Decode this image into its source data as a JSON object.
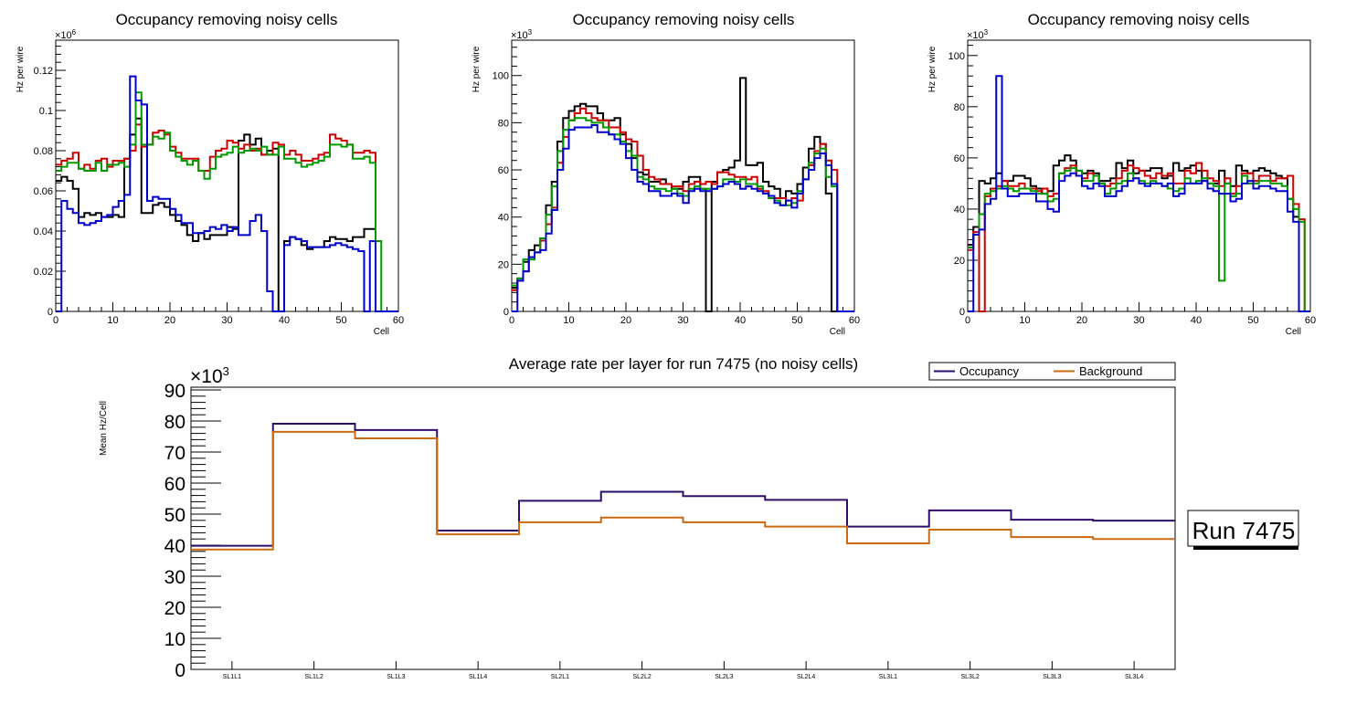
{
  "chart_data": [
    {
      "type": "line",
      "style": "step-histogram",
      "title": "Occupancy removing noisy cells",
      "xlabel": "Cell",
      "ylabel": "Hz per wire",
      "y_multiplier": "×10^6",
      "y_multiplier_base": "×10",
      "y_multiplier_exp": "6",
      "xlim": [
        0,
        60
      ],
      "ylim": [
        0,
        0.135
      ],
      "x_ticks": [
        0,
        10,
        20,
        30,
        40,
        50,
        60
      ],
      "y_ticks": [
        0,
        0.02,
        0.04,
        0.06,
        0.08,
        0.1,
        0.12
      ],
      "y_tick_labels": [
        "0",
        "0.02",
        "0.04",
        "0.06",
        "0.08",
        "0.1",
        "0.12"
      ],
      "series": [
        {
          "name": "black",
          "color": "#000000",
          "values": [
            0.065,
            0.067,
            0.065,
            0.061,
            0.047,
            0.049,
            0.048,
            0.049,
            0.047,
            0.047,
            0.048,
            0.047,
            0.076,
            0.088,
            0.096,
            0.049,
            0.049,
            0.053,
            0.054,
            0.052,
            0.048,
            0.045,
            0.043,
            0.038,
            0.035,
            0.039,
            0.036,
            0.038,
            0.038,
            0.038,
            0.042,
            0.041,
            0.085,
            0.088,
            0.083,
            0.086,
            0.078,
            0.08,
            0.081,
            0.0,
            0.035,
            0.037,
            0.036,
            0.033,
            0.031,
            0.032,
            0.032,
            0.035,
            0.037,
            0.036,
            0.036,
            0.035,
            0.037,
            0.037,
            0.041,
            0.041,
            0,
            0,
            0,
            0
          ]
        },
        {
          "name": "red",
          "color": "#cc0000",
          "values": [
            0.073,
            0.075,
            0.076,
            0.079,
            0.071,
            0.073,
            0.071,
            0.075,
            0.076,
            0.072,
            0.075,
            0.075,
            0.076,
            0.08,
            0.093,
            0.082,
            0.083,
            0.089,
            0.09,
            0.088,
            0.082,
            0.079,
            0.076,
            0.076,
            0.076,
            0.07,
            0.07,
            0.077,
            0.08,
            0.081,
            0.085,
            0.084,
            0.081,
            0.083,
            0.08,
            0.081,
            0.078,
            0.078,
            0.084,
            0.083,
            0.078,
            0.08,
            0.078,
            0.075,
            0.075,
            0.076,
            0.078,
            0.079,
            0.088,
            0.086,
            0.085,
            0.083,
            0.079,
            0.079,
            0.08,
            0.079,
            0,
            0,
            0,
            0
          ]
        },
        {
          "name": "green",
          "color": "#009900",
          "values": [
            0.07,
            0.072,
            0.074,
            0.074,
            0.071,
            0.07,
            0.07,
            0.074,
            0.07,
            0.073,
            0.073,
            0.074,
            0.072,
            0.083,
            0.109,
            0.083,
            0.083,
            0.087,
            0.086,
            0.089,
            0.08,
            0.077,
            0.075,
            0.073,
            0.075,
            0.07,
            0.066,
            0.071,
            0.077,
            0.078,
            0.079,
            0.082,
            0.079,
            0.08,
            0.081,
            0.08,
            0.082,
            0.078,
            0.078,
            0.082,
            0.076,
            0.076,
            0.074,
            0.072,
            0.073,
            0.074,
            0.075,
            0.077,
            0.083,
            0.083,
            0.082,
            0.083,
            0.076,
            0.076,
            0.077,
            0.074,
            0.035,
            0,
            0,
            0
          ]
        },
        {
          "name": "blue",
          "color": "#0000cc",
          "values": [
            0.0,
            0.055,
            0.051,
            0.049,
            0.044,
            0.043,
            0.044,
            0.045,
            0.047,
            0.048,
            0.052,
            0.055,
            0.058,
            0.117,
            0.105,
            0.103,
            0.055,
            0.057,
            0.056,
            0.056,
            0.051,
            0.048,
            0.044,
            0.044,
            0.039,
            0.039,
            0.04,
            0.042,
            0.041,
            0.043,
            0.04,
            0.042,
            0.038,
            0.038,
            0.045,
            0.048,
            0.04,
            0.01,
            0.0,
            0.0,
            0.033,
            0.037,
            0.036,
            0.035,
            0.032,
            0.032,
            0.032,
            0.032,
            0.033,
            0.034,
            0.033,
            0.032,
            0.031,
            0.03,
            0.0,
            0.035,
            0,
            0,
            0,
            0
          ]
        }
      ]
    },
    {
      "type": "line",
      "style": "step-histogram",
      "title": "Occupancy removing noisy cells",
      "xlabel": "Cell",
      "ylabel": "Hz per wire",
      "y_multiplier": "×10^3",
      "y_multiplier_base": "×10",
      "y_multiplier_exp": "3",
      "xlim": [
        0,
        60
      ],
      "ylim": [
        0,
        115
      ],
      "x_ticks": [
        0,
        10,
        20,
        30,
        40,
        50,
        60
      ],
      "y_ticks": [
        0,
        20,
        40,
        60,
        80,
        100
      ],
      "y_tick_labels": [
        "0",
        "20",
        "40",
        "60",
        "80",
        "100"
      ],
      "series": [
        {
          "name": "black",
          "color": "#000000",
          "values": [
            10,
            14,
            21,
            26,
            28,
            31,
            45,
            55,
            72,
            82,
            85,
            87,
            88,
            87,
            87,
            84,
            81,
            81,
            82,
            75,
            71,
            65,
            59,
            58,
            55,
            55,
            56,
            54,
            52,
            52,
            55,
            57,
            57,
            52,
            0,
            55,
            59,
            60,
            61,
            64,
            99,
            62,
            62,
            63,
            55,
            53,
            52,
            48,
            51,
            50,
            54,
            61,
            69,
            74,
            71,
            50,
            0,
            0,
            0,
            0
          ]
        },
        {
          "name": "red",
          "color": "#cc0000",
          "values": [
            9,
            13,
            17,
            23,
            25,
            30,
            37,
            44,
            63,
            74,
            81,
            84,
            86,
            84,
            82,
            81,
            81,
            78,
            78,
            76,
            73,
            72,
            66,
            60,
            57,
            56,
            54,
            54,
            53,
            53,
            51,
            54,
            55,
            54,
            55,
            54,
            59,
            59,
            58,
            57,
            57,
            56,
            57,
            52,
            51,
            49,
            48,
            48,
            47,
            48,
            47,
            56,
            62,
            68,
            71,
            64,
            60,
            0,
            0,
            0
          ]
        },
        {
          "name": "green",
          "color": "#009900",
          "values": [
            11,
            14,
            22,
            22,
            25,
            31,
            41,
            53,
            68,
            77,
            81,
            82,
            82,
            81,
            80,
            80,
            78,
            75,
            75,
            72,
            68,
            66,
            57,
            56,
            53,
            52,
            52,
            51,
            52,
            50,
            49,
            52,
            53,
            52,
            52,
            52,
            53,
            56,
            56,
            55,
            56,
            54,
            54,
            53,
            50,
            48,
            47,
            45,
            45,
            46,
            51,
            56,
            63,
            67,
            69,
            57,
            53,
            0,
            0,
            0
          ]
        },
        {
          "name": "blue",
          "color": "#0000cc",
          "values": [
            0,
            13,
            17,
            23,
            25,
            26,
            33,
            43,
            60,
            69,
            77,
            78,
            78,
            78,
            79,
            76,
            76,
            75,
            73,
            71,
            65,
            60,
            55,
            54,
            51,
            51,
            49,
            49,
            50,
            49,
            46,
            51,
            52,
            51,
            51,
            52,
            53,
            54,
            55,
            54,
            52,
            53,
            52,
            51,
            50,
            49,
            46,
            45,
            47,
            44,
            50,
            56,
            60,
            65,
            67,
            62,
            54,
            0,
            0,
            0
          ]
        }
      ]
    },
    {
      "type": "line",
      "style": "step-histogram",
      "title": "Occupancy removing noisy cells",
      "xlabel": "Cell",
      "ylabel": "Hz per wire",
      "y_multiplier": "×10^3",
      "y_multiplier_base": "×10",
      "y_multiplier_exp": "3",
      "xlim": [
        0,
        60
      ],
      "ylim": [
        0,
        106
      ],
      "x_ticks": [
        0,
        10,
        20,
        30,
        40,
        50,
        60
      ],
      "y_ticks": [
        0,
        20,
        40,
        60,
        80,
        100
      ],
      "y_tick_labels": [
        "0",
        "20",
        "40",
        "60",
        "80",
        "100"
      ],
      "series": [
        {
          "name": "black",
          "color": "#000000",
          "values": [
            26,
            33,
            51,
            50,
            52,
            54,
            51,
            51,
            53,
            53,
            52,
            49,
            48,
            46,
            47,
            57,
            59,
            61,
            59,
            55,
            54,
            55,
            54,
            51,
            51,
            52,
            58,
            56,
            59,
            54,
            55,
            55,
            56,
            56,
            52,
            53,
            58,
            55,
            56,
            57,
            55,
            51,
            50,
            50,
            55,
            50,
            49,
            57,
            55,
            54,
            55,
            56,
            55,
            54,
            53,
            52,
            44,
            37,
            0,
            0
          ]
        },
        {
          "name": "red",
          "color": "#cc0000",
          "values": [
            24,
            31,
            0,
            45,
            48,
            49,
            51,
            49,
            49,
            50,
            48,
            48,
            47,
            48,
            45,
            46,
            54,
            56,
            57,
            53,
            52,
            54,
            53,
            50,
            49,
            50,
            52,
            55,
            57,
            56,
            55,
            53,
            52,
            54,
            53,
            54,
            50,
            50,
            55,
            54,
            58,
            55,
            52,
            51,
            49,
            52,
            46,
            49,
            54,
            54,
            51,
            53,
            53,
            51,
            52,
            52,
            53,
            42,
            36,
            0
          ]
        },
        {
          "name": "green",
          "color": "#009900",
          "values": [
            25,
            30,
            38,
            46,
            47,
            48,
            49,
            48,
            47,
            48,
            48,
            47,
            46,
            46,
            43,
            44,
            54,
            55,
            56,
            55,
            51,
            51,
            53,
            50,
            46,
            48,
            50,
            51,
            54,
            52,
            51,
            50,
            51,
            50,
            49,
            48,
            47,
            48,
            52,
            50,
            51,
            52,
            50,
            49,
            12,
            50,
            45,
            46,
            53,
            50,
            50,
            51,
            51,
            50,
            50,
            49,
            44,
            40,
            35,
            0
          ]
        },
        {
          "name": "blue",
          "color": "#0000cc",
          "values": [
            0,
            30,
            32,
            42,
            44,
            92,
            48,
            45,
            45,
            46,
            46,
            46,
            43,
            43,
            40,
            39,
            51,
            53,
            54,
            53,
            49,
            48,
            50,
            49,
            45,
            45,
            47,
            49,
            51,
            52,
            50,
            49,
            50,
            50,
            49,
            50,
            45,
            46,
            50,
            50,
            50,
            51,
            48,
            47,
            46,
            46,
            43,
            44,
            50,
            51,
            48,
            49,
            49,
            48,
            47,
            47,
            39,
            35,
            0,
            0
          ]
        }
      ]
    },
    {
      "type": "line",
      "style": "step-histogram",
      "title": "Average rate per layer for run 7475 (no noisy cells)",
      "xlabel": "",
      "ylabel": "Mean Hz/Cell",
      "y_multiplier": "×10^3",
      "y_multiplier_base": "×10",
      "y_multiplier_exp": "3",
      "categories": [
        "SL1L1",
        "SL1L2",
        "SL1L3",
        "SL1L4",
        "SL2L1",
        "SL2L2",
        "SL2L3",
        "SL2L4",
        "SL3L1",
        "SL3L2",
        "SL3L3",
        "SL3L4"
      ],
      "ylim": [
        0,
        90
      ],
      "y_ticks": [
        0,
        10,
        20,
        30,
        40,
        50,
        60,
        70,
        80,
        90
      ],
      "y_tick_labels": [
        "0",
        "10",
        "20",
        "30",
        "40",
        "50",
        "60",
        "70",
        "80",
        "90"
      ],
      "legend": {
        "placement": "top-right",
        "entries": [
          "Occupancy",
          "Background"
        ]
      },
      "series": [
        {
          "name": "Occupancy",
          "color": "#2e0d6b",
          "values": [
            39.8,
            79.1,
            77.1,
            44.7,
            54.3,
            57.2,
            55.8,
            54.6,
            46.0,
            51.2,
            48.2,
            47.9
          ]
        },
        {
          "name": "Background",
          "color": "#cc6a10",
          "values": [
            38.6,
            76.5,
            74.4,
            43.5,
            47.4,
            48.9,
            47.4,
            46.0,
            40.6,
            45.0,
            42.6,
            42.0
          ]
        }
      ]
    }
  ],
  "annotation": {
    "run_label": "Run 7475"
  }
}
